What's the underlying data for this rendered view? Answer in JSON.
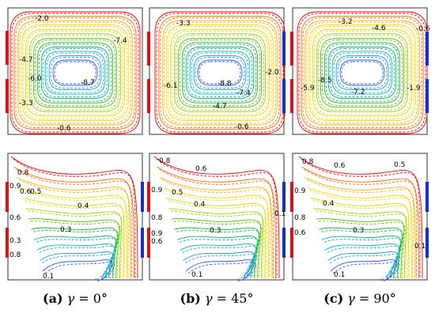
{
  "figure": {
    "columns": [
      {
        "caption": {
          "tag": "(a)",
          "symbol": "γ",
          "equals": " = ",
          "value": "0°"
        },
        "top_labels": [
          "-2.0",
          "-7.4",
          "-4.7",
          "-8.7",
          "-6.0",
          "-3.3",
          "-0.6"
        ],
        "bottom_labels": [
          "0.8",
          "0.6",
          "0.5",
          "0.9",
          "0.4",
          "0.3",
          "0.6",
          "0.3",
          "0.8",
          "0.1"
        ]
      },
      {
        "caption": {
          "tag": "(b)",
          "symbol": "γ",
          "equals": " = ",
          "value": "45°"
        },
        "top_labels": [
          "-3.3",
          "-6.1",
          "-8.8",
          "-2.0",
          "-7.4",
          "-4.7",
          "-0.6"
        ],
        "bottom_labels": [
          "0.8",
          "0.6",
          "0.9",
          "0.5",
          "0.4",
          "0.8",
          "0.9",
          "0.6",
          "0.3",
          "0.1",
          "0.1"
        ]
      },
      {
        "caption": {
          "tag": "(c)",
          "symbol": "γ",
          "equals": " = ",
          "value": "90°"
        },
        "top_labels": [
          "-3.2",
          "-4.6",
          "-0.6",
          "-8.5",
          "-5.9",
          "-7.2",
          "-1.9"
        ],
        "bottom_labels": [
          "0.8",
          "0.6",
          "0.5",
          "0.9",
          "0.4",
          "0.8",
          "0.6",
          "0.3",
          "0.1",
          "0.1"
        ]
      }
    ],
    "contour_colors": [
      "#ff0000",
      "#ff6a00",
      "#ffae00",
      "#ffd800",
      "#d8e000",
      "#9ad600",
      "#52c800",
      "#18bd2a",
      "#00b880",
      "#00bcc4",
      "#1f9ae8",
      "#3060f0"
    ],
    "heater_color": "#e01010",
    "cooler_color": "#1030d0"
  }
}
